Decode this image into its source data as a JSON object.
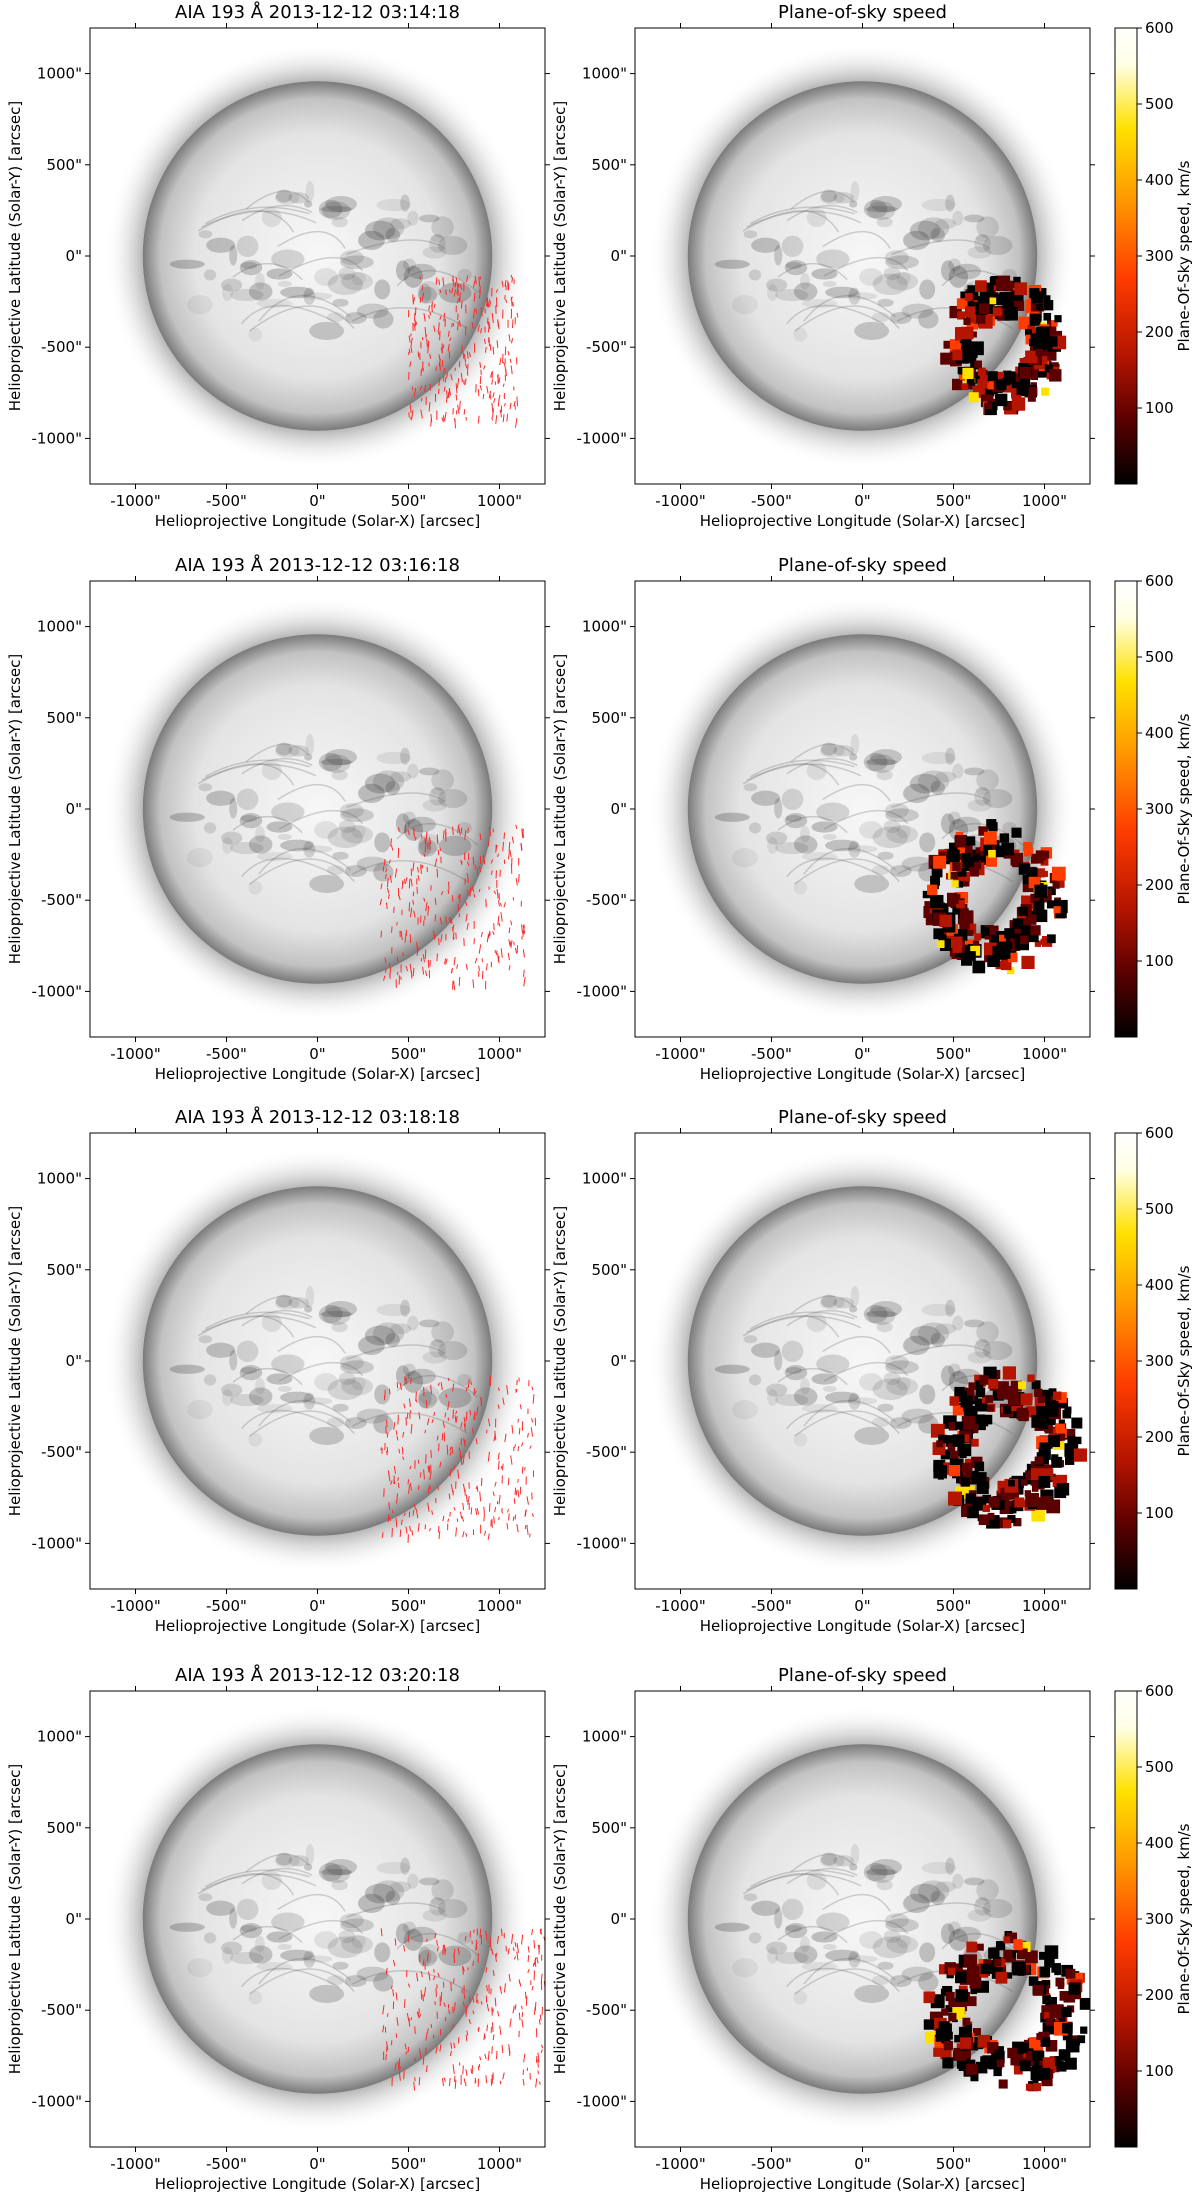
{
  "colors": {
    "vector": "#ff2a2a",
    "disk_light": "#f7f7f7",
    "disk_dark": "#7a7a7a",
    "colormap": [
      "#000000",
      "#5a0000",
      "#b41400",
      "#ff3c00",
      "#ff9600",
      "#ffe100",
      "#ffffe6",
      "#ffffff"
    ]
  },
  "chart_data": [
    {
      "type": "image",
      "panel": "row1-left",
      "title": "AIA 193 Å 2013-12-12 03:14:18",
      "xlabel": "Helioprojective Longitude (Solar-X) [arcsec]",
      "ylabel": "Helioprojective Latitude (Solar-Y) [arcsec]",
      "xlim": [
        -1250,
        1250
      ],
      "ylim": [
        -1250,
        1250
      ],
      "xticks": [
        -1000,
        -500,
        0,
        500,
        1000
      ],
      "yticks": [
        1000,
        500,
        0,
        -500,
        -1000
      ],
      "xtick_labels": [
        "-1000\"",
        "-500\"",
        "0\"",
        "500\"",
        "1000\""
      ],
      "ytick_labels": [
        "1000\"",
        "500\"",
        "0\"",
        "-500\"",
        "-1000\""
      ],
      "overlay": "velocity-vectors",
      "region": [
        [
          500,
          -900
        ],
        [
          1100,
          -100
        ]
      ]
    },
    {
      "type": "image",
      "panel": "row1-right",
      "title": "Plane-of-sky speed",
      "xlabel": "Helioprojective Longitude (Solar-X) [arcsec]",
      "ylabel": "Helioprojective Latitude (Solar-Y) [arcsec]",
      "xlim": [
        -1250,
        1250
      ],
      "ylim": [
        -1250,
        1250
      ],
      "xticks": [
        -1000,
        -500,
        0,
        500,
        1000
      ],
      "yticks": [
        1000,
        500,
        0,
        -500,
        -1000
      ],
      "xtick_labels": [
        "-1000\"",
        "-500\"",
        "0\"",
        "500\"",
        "1000\""
      ],
      "ytick_labels": [
        "1000\"",
        "500\"",
        "0\"",
        "-500\"",
        "-1000\""
      ],
      "overlay": "speed-map",
      "region": [
        [
          450,
          -850
        ],
        [
          1100,
          -120
        ]
      ],
      "colorbar": {
        "label": "Plane-Of-Sky speed, km/s",
        "range": [
          0,
          600
        ],
        "ticks": [
          100,
          200,
          300,
          400,
          500,
          600
        ]
      }
    },
    {
      "type": "image",
      "panel": "row2-left",
      "title": "AIA 193 Å 2013-12-12 03:16:18",
      "xlabel": "Helioprojective Longitude (Solar-X) [arcsec]",
      "ylabel": "Helioprojective Latitude (Solar-Y) [arcsec]",
      "xlim": [
        -1250,
        1250
      ],
      "ylim": [
        -1250,
        1250
      ],
      "xticks": [
        -1000,
        -500,
        0,
        500,
        1000
      ],
      "yticks": [
        1000,
        500,
        0,
        -500,
        -1000
      ],
      "xtick_labels": [
        "-1000\"",
        "-500\"",
        "0\"",
        "500\"",
        "1000\""
      ],
      "ytick_labels": [
        "1000\"",
        "500\"",
        "0\"",
        "-500\"",
        "-1000\""
      ],
      "overlay": "velocity-vectors",
      "region": [
        [
          350,
          -950
        ],
        [
          1150,
          -80
        ]
      ]
    },
    {
      "type": "image",
      "panel": "row2-right",
      "title": "Plane-of-sky speed",
      "xlabel": "Helioprojective Longitude (Solar-X) [arcsec]",
      "ylabel": "Helioprojective Latitude (Solar-Y) [arcsec]",
      "xlim": [
        -1250,
        1250
      ],
      "ylim": [
        -1250,
        1250
      ],
      "xticks": [
        -1000,
        -500,
        0,
        500,
        1000
      ],
      "yticks": [
        1000,
        500,
        0,
        -500,
        -1000
      ],
      "xtick_labels": [
        "-1000\"",
        "-500\"",
        "0\"",
        "500\"",
        "1000\""
      ],
      "ytick_labels": [
        "1000\"",
        "500\"",
        "0\"",
        "-500\"",
        "-1000\""
      ],
      "overlay": "speed-map",
      "region": [
        [
          350,
          -900
        ],
        [
          1100,
          -80
        ]
      ],
      "colorbar": {
        "label": "Plane-Of-Sky speed, km/s",
        "range": [
          0,
          600
        ],
        "ticks": [
          100,
          200,
          300,
          400,
          500,
          600
        ]
      }
    },
    {
      "type": "image",
      "panel": "row3-left",
      "title": "AIA 193 Å 2013-12-12 03:18:18",
      "xlabel": "Helioprojective Longitude (Solar-X) [arcsec]",
      "ylabel": "Helioprojective Latitude (Solar-Y) [arcsec]",
      "xlim": [
        -1250,
        1250
      ],
      "ylim": [
        -1250,
        1250
      ],
      "xticks": [
        -1000,
        -500,
        0,
        500,
        1000
      ],
      "yticks": [
        1000,
        500,
        0,
        -500,
        -1000
      ],
      "xtick_labels": [
        "-1000\"",
        "-500\"",
        "0\"",
        "500\"",
        "1000\""
      ],
      "ytick_labels": [
        "1000\"",
        "500\"",
        "0\"",
        "-500\"",
        "-1000\""
      ],
      "overlay": "velocity-vectors",
      "region": [
        [
          350,
          -950
        ],
        [
          1200,
          -80
        ]
      ]
    },
    {
      "type": "image",
      "panel": "row3-right",
      "title": "Plane-of-sky speed",
      "xlabel": "Helioprojective Longitude (Solar-X) [arcsec]",
      "ylabel": "Helioprojective Latitude (Solar-Y) [arcsec]",
      "xlim": [
        -1250,
        1250
      ],
      "ylim": [
        -1250,
        1250
      ],
      "xticks": [
        -1000,
        -500,
        0,
        500,
        1000
      ],
      "yticks": [
        1000,
        500,
        0,
        -500,
        -1000
      ],
      "xtick_labels": [
        "-1000\"",
        "-500\"",
        "0\"",
        "500\"",
        "1000\""
      ],
      "ytick_labels": [
        "1000\"",
        "500\"",
        "0\"",
        "-500\"",
        "-1000\""
      ],
      "overlay": "speed-map",
      "region": [
        [
          400,
          -900
        ],
        [
          1200,
          -50
        ]
      ],
      "colorbar": {
        "label": "Plane-Of-Sky speed, km/s",
        "range": [
          0,
          600
        ],
        "ticks": [
          100,
          200,
          300,
          400,
          500,
          600
        ]
      }
    },
    {
      "type": "image",
      "panel": "row4-left",
      "title": "AIA 193 Å 2013-12-12 03:20:18",
      "xlabel": "Helioprojective Longitude (Solar-X) [arcsec]",
      "ylabel": "Helioprojective Latitude (Solar-Y) [arcsec]",
      "xlim": [
        -1250,
        1250
      ],
      "ylim": [
        -1250,
        1250
      ],
      "xticks": [
        -1000,
        -500,
        0,
        500,
        1000
      ],
      "yticks": [
        1000,
        500,
        0,
        -500,
        -1000
      ],
      "xtick_labels": [
        "-1000\"",
        "-500\"",
        "0\"",
        "500\"",
        "1000\""
      ],
      "ytick_labels": [
        "1000\"",
        "500\"",
        "0\"",
        "-500\"",
        "-1000\""
      ],
      "overlay": "velocity-vectors",
      "region": [
        [
          350,
          -900
        ],
        [
          1250,
          -50
        ]
      ]
    },
    {
      "type": "image",
      "panel": "row4-right",
      "title": "Plane-of-sky speed",
      "xlabel": "Helioprojective Longitude (Solar-X) [arcsec]",
      "ylabel": "Helioprojective Latitude (Solar-Y) [arcsec]",
      "xlim": [
        -1250,
        1250
      ],
      "ylim": [
        -1250,
        1250
      ],
      "xticks": [
        -1000,
        -500,
        0,
        500,
        1000
      ],
      "yticks": [
        1000,
        500,
        0,
        -500,
        -1000
      ],
      "xtick_labels": [
        "-1000\"",
        "-500\"",
        "0\"",
        "500\"",
        "1000\""
      ],
      "ytick_labels": [
        "1000\"",
        "500\"",
        "0\"",
        "-500\"",
        "-1000\""
      ],
      "overlay": "speed-map",
      "region": [
        [
          350,
          -950
        ],
        [
          1250,
          -80
        ]
      ],
      "colorbar": {
        "label": "Plane-Of-Sky speed, km/s",
        "range": [
          0,
          600
        ],
        "ticks": [
          100,
          200,
          300,
          400,
          500,
          600
        ]
      }
    }
  ]
}
